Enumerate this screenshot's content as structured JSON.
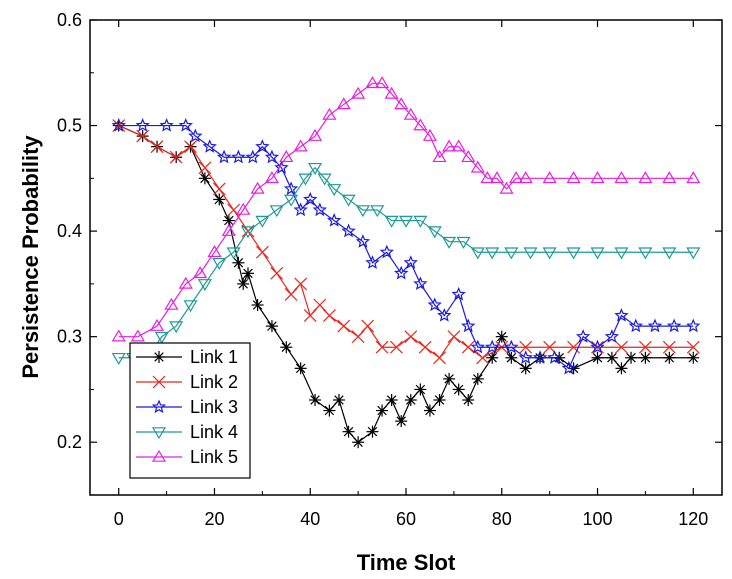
{
  "chart_data": {
    "type": "line",
    "title": "",
    "xlabel": "Time Slot",
    "ylabel": "Persistence Probability",
    "xlim": [
      -6,
      126
    ],
    "ylim": [
      0.15,
      0.6
    ],
    "xticks": [
      0,
      20,
      40,
      60,
      80,
      100,
      120
    ],
    "yticks": [
      0.2,
      0.3,
      0.4,
      0.5,
      0.6
    ],
    "xtick_labels": [
      "0",
      "20",
      "40",
      "60",
      "80",
      "100",
      "120"
    ],
    "ytick_labels": [
      "0.2",
      "0.3",
      "0.4",
      "0.5",
      "0.6"
    ],
    "grid": false,
    "legend_position": "bottom-left",
    "series": [
      {
        "name": "Link 1",
        "color": "#000000",
        "marker": "asterisk",
        "points": [
          [
            0,
            0.5
          ],
          [
            5,
            0.49
          ],
          [
            8,
            0.48
          ],
          [
            12,
            0.47
          ],
          [
            15,
            0.48
          ],
          [
            18,
            0.45
          ],
          [
            21,
            0.43
          ],
          [
            23,
            0.41
          ],
          [
            25,
            0.37
          ],
          [
            26,
            0.35
          ],
          [
            27,
            0.36
          ],
          [
            29,
            0.33
          ],
          [
            32,
            0.31
          ],
          [
            35,
            0.29
          ],
          [
            38,
            0.27
          ],
          [
            41,
            0.24
          ],
          [
            44,
            0.23
          ],
          [
            46,
            0.24
          ],
          [
            48,
            0.21
          ],
          [
            50,
            0.2
          ],
          [
            53,
            0.21
          ],
          [
            55,
            0.23
          ],
          [
            57,
            0.24
          ],
          [
            59,
            0.22
          ],
          [
            61,
            0.24
          ],
          [
            63,
            0.25
          ],
          [
            65,
            0.23
          ],
          [
            67,
            0.24
          ],
          [
            69,
            0.26
          ],
          [
            71,
            0.25
          ],
          [
            73,
            0.24
          ],
          [
            75,
            0.26
          ],
          [
            78,
            0.28
          ],
          [
            80,
            0.3
          ],
          [
            82,
            0.28
          ],
          [
            85,
            0.27
          ],
          [
            88,
            0.28
          ],
          [
            92,
            0.28
          ],
          [
            95,
            0.27
          ],
          [
            100,
            0.28
          ],
          [
            103,
            0.28
          ],
          [
            105,
            0.27
          ],
          [
            107,
            0.28
          ],
          [
            110,
            0.28
          ],
          [
            115,
            0.28
          ],
          [
            120,
            0.28
          ]
        ]
      },
      {
        "name": "Link 2",
        "color": "#e8281e",
        "marker": "x",
        "points": [
          [
            0,
            0.5
          ],
          [
            5,
            0.49
          ],
          [
            8,
            0.48
          ],
          [
            12,
            0.47
          ],
          [
            15,
            0.48
          ],
          [
            18,
            0.46
          ],
          [
            21,
            0.44
          ],
          [
            24,
            0.42
          ],
          [
            27,
            0.4
          ],
          [
            30,
            0.38
          ],
          [
            33,
            0.36
          ],
          [
            36,
            0.34
          ],
          [
            38,
            0.35
          ],
          [
            40,
            0.32
          ],
          [
            42,
            0.33
          ],
          [
            44,
            0.32
          ],
          [
            47,
            0.31
          ],
          [
            50,
            0.3
          ],
          [
            52,
            0.31
          ],
          [
            55,
            0.29
          ],
          [
            58,
            0.29
          ],
          [
            61,
            0.3
          ],
          [
            64,
            0.29
          ],
          [
            67,
            0.28
          ],
          [
            70,
            0.3
          ],
          [
            73,
            0.29
          ],
          [
            76,
            0.28
          ],
          [
            80,
            0.29
          ],
          [
            85,
            0.29
          ],
          [
            90,
            0.29
          ],
          [
            95,
            0.29
          ],
          [
            100,
            0.29
          ],
          [
            105,
            0.29
          ],
          [
            110,
            0.29
          ],
          [
            115,
            0.29
          ],
          [
            120,
            0.29
          ]
        ]
      },
      {
        "name": "Link 3",
        "color": "#1a1ae0",
        "marker": "star",
        "points": [
          [
            0,
            0.5
          ],
          [
            5,
            0.5
          ],
          [
            10,
            0.5
          ],
          [
            14,
            0.5
          ],
          [
            16,
            0.49
          ],
          [
            19,
            0.48
          ],
          [
            22,
            0.47
          ],
          [
            25,
            0.47
          ],
          [
            28,
            0.47
          ],
          [
            30,
            0.48
          ],
          [
            32,
            0.47
          ],
          [
            34,
            0.46
          ],
          [
            36,
            0.44
          ],
          [
            38,
            0.42
          ],
          [
            40,
            0.43
          ],
          [
            42,
            0.42
          ],
          [
            45,
            0.41
          ],
          [
            48,
            0.4
          ],
          [
            51,
            0.39
          ],
          [
            53,
            0.37
          ],
          [
            56,
            0.38
          ],
          [
            59,
            0.36
          ],
          [
            61,
            0.37
          ],
          [
            63,
            0.35
          ],
          [
            66,
            0.33
          ],
          [
            68,
            0.32
          ],
          [
            71,
            0.34
          ],
          [
            73,
            0.31
          ],
          [
            75,
            0.29
          ],
          [
            78,
            0.29
          ],
          [
            82,
            0.29
          ],
          [
            85,
            0.28
          ],
          [
            88,
            0.28
          ],
          [
            91,
            0.28
          ],
          [
            94,
            0.27
          ],
          [
            97,
            0.3
          ],
          [
            100,
            0.29
          ],
          [
            103,
            0.3
          ],
          [
            105,
            0.32
          ],
          [
            108,
            0.31
          ],
          [
            112,
            0.31
          ],
          [
            116,
            0.31
          ],
          [
            120,
            0.31
          ]
        ]
      },
      {
        "name": "Link 4",
        "color": "#1e9a96",
        "marker": "triangle-down",
        "points": [
          [
            0,
            0.28
          ],
          [
            3,
            0.28
          ],
          [
            6,
            0.28
          ],
          [
            9,
            0.3
          ],
          [
            12,
            0.31
          ],
          [
            15,
            0.33
          ],
          [
            18,
            0.35
          ],
          [
            21,
            0.37
          ],
          [
            24,
            0.38
          ],
          [
            27,
            0.4
          ],
          [
            30,
            0.41
          ],
          [
            33,
            0.42
          ],
          [
            36,
            0.43
          ],
          [
            39,
            0.45
          ],
          [
            41,
            0.46
          ],
          [
            43,
            0.45
          ],
          [
            45,
            0.44
          ],
          [
            48,
            0.43
          ],
          [
            51,
            0.42
          ],
          [
            54,
            0.42
          ],
          [
            57,
            0.41
          ],
          [
            60,
            0.41
          ],
          [
            63,
            0.41
          ],
          [
            66,
            0.4
          ],
          [
            69,
            0.39
          ],
          [
            72,
            0.39
          ],
          [
            75,
            0.38
          ],
          [
            78,
            0.38
          ],
          [
            82,
            0.38
          ],
          [
            86,
            0.38
          ],
          [
            90,
            0.38
          ],
          [
            95,
            0.38
          ],
          [
            100,
            0.38
          ],
          [
            105,
            0.38
          ],
          [
            110,
            0.38
          ],
          [
            115,
            0.38
          ],
          [
            120,
            0.38
          ]
        ]
      },
      {
        "name": "Link 5",
        "color": "#e81ee0",
        "marker": "triangle-up",
        "points": [
          [
            0,
            0.3
          ],
          [
            4,
            0.3
          ],
          [
            8,
            0.31
          ],
          [
            11,
            0.33
          ],
          [
            14,
            0.35
          ],
          [
            17,
            0.36
          ],
          [
            20,
            0.38
          ],
          [
            23,
            0.4
          ],
          [
            26,
            0.42
          ],
          [
            29,
            0.44
          ],
          [
            32,
            0.45
          ],
          [
            35,
            0.47
          ],
          [
            38,
            0.48
          ],
          [
            41,
            0.49
          ],
          [
            44,
            0.51
          ],
          [
            47,
            0.52
          ],
          [
            50,
            0.53
          ],
          [
            53,
            0.54
          ],
          [
            55,
            0.54
          ],
          [
            57,
            0.53
          ],
          [
            59,
            0.52
          ],
          [
            61,
            0.51
          ],
          [
            63,
            0.5
          ],
          [
            65,
            0.49
          ],
          [
            67,
            0.47
          ],
          [
            69,
            0.48
          ],
          [
            71,
            0.48
          ],
          [
            73,
            0.47
          ],
          [
            75,
            0.46
          ],
          [
            77,
            0.45
          ],
          [
            79,
            0.45
          ],
          [
            81,
            0.44
          ],
          [
            83,
            0.45
          ],
          [
            85,
            0.45
          ],
          [
            90,
            0.45
          ],
          [
            95,
            0.45
          ],
          [
            100,
            0.45
          ],
          [
            105,
            0.45
          ],
          [
            110,
            0.45
          ],
          [
            115,
            0.45
          ],
          [
            120,
            0.45
          ]
        ]
      }
    ]
  }
}
